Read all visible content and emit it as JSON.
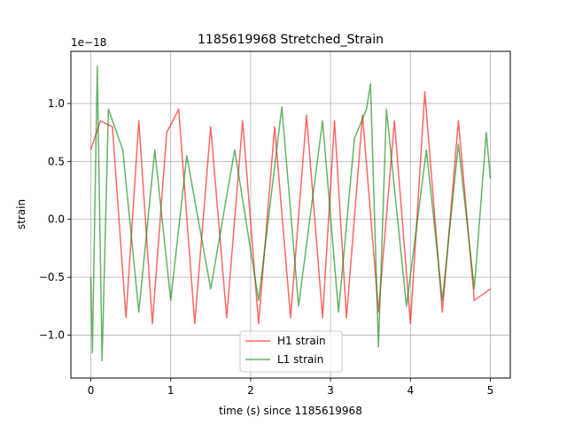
{
  "chart_data": {
    "type": "line",
    "title": "1185619968 Stretched_Strain",
    "xlabel": "time (s) since 1185619968",
    "ylabel": "strain",
    "offset_text": "1e−18",
    "xlim": [
      -0.25,
      5.25
    ],
    "ylim": [
      -1.37,
      1.45
    ],
    "xticks": [
      0,
      1,
      2,
      3,
      4,
      5
    ],
    "xtick_labels": [
      "0",
      "1",
      "2",
      "3",
      "4",
      "5"
    ],
    "yticks": [
      -1.0,
      -0.5,
      0.0,
      0.5,
      1.0
    ],
    "ytick_labels": [
      "−1.0",
      "−0.5",
      "0.0",
      "0.5",
      "1.0"
    ],
    "grid": true,
    "legend_position": "lower-center",
    "x_range": [
      0,
      5
    ],
    "series": [
      {
        "name": "H1 strain",
        "color": "#ff0000",
        "alpha": 0.6,
        "points": [
          [
            0.0,
            0.6
          ],
          [
            0.12,
            0.85
          ],
          [
            0.27,
            0.8
          ],
          [
            0.44,
            -0.85
          ],
          [
            0.6,
            0.85
          ],
          [
            0.77,
            -0.9
          ],
          [
            0.95,
            0.75
          ],
          [
            1.1,
            0.95
          ],
          [
            1.3,
            -0.9
          ],
          [
            1.5,
            0.8
          ],
          [
            1.7,
            -0.85
          ],
          [
            1.9,
            0.85
          ],
          [
            2.1,
            -0.9
          ],
          [
            2.3,
            0.8
          ],
          [
            2.5,
            -0.85
          ],
          [
            2.7,
            0.9
          ],
          [
            2.9,
            -0.85
          ],
          [
            3.05,
            0.85
          ],
          [
            3.2,
            -0.85
          ],
          [
            3.4,
            0.9
          ],
          [
            3.6,
            -0.8
          ],
          [
            3.8,
            0.85
          ],
          [
            4.0,
            -0.9
          ],
          [
            4.18,
            1.1
          ],
          [
            4.4,
            -0.8
          ],
          [
            4.6,
            0.85
          ],
          [
            4.8,
            -0.7
          ],
          [
            5.0,
            -0.6
          ]
        ]
      },
      {
        "name": "L1 strain",
        "color": "#008000",
        "alpha": 0.6,
        "points": [
          [
            0.0,
            -0.5
          ],
          [
            0.02,
            -1.15
          ],
          [
            0.08,
            1.32
          ],
          [
            0.14,
            -1.22
          ],
          [
            0.22,
            0.95
          ],
          [
            0.4,
            0.6
          ],
          [
            0.6,
            -0.8
          ],
          [
            0.8,
            0.6
          ],
          [
            1.0,
            -0.7
          ],
          [
            1.2,
            0.55
          ],
          [
            1.5,
            -0.6
          ],
          [
            1.8,
            0.6
          ],
          [
            2.1,
            -0.7
          ],
          [
            2.39,
            0.97
          ],
          [
            2.6,
            -0.75
          ],
          [
            2.9,
            0.85
          ],
          [
            3.1,
            -0.8
          ],
          [
            3.3,
            0.7
          ],
          [
            3.45,
            0.95
          ],
          [
            3.5,
            1.17
          ],
          [
            3.6,
            -1.1
          ],
          [
            3.7,
            0.95
          ],
          [
            3.95,
            -0.75
          ],
          [
            4.2,
            0.6
          ],
          [
            4.4,
            -0.7
          ],
          [
            4.6,
            0.65
          ],
          [
            4.8,
            -0.6
          ],
          [
            4.95,
            0.75
          ],
          [
            5.0,
            0.35
          ]
        ]
      }
    ]
  }
}
